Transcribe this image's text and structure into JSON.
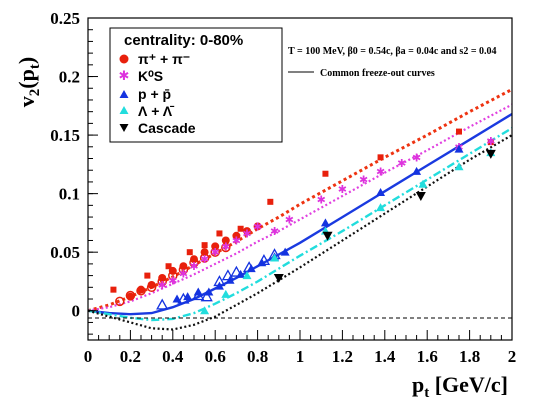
{
  "chart_data": {
    "type": "scatter",
    "xlabel": "p_t [GeV/c]",
    "ylabel": "v_2(p_t)",
    "xlim": [
      0,
      2
    ],
    "ylim": [
      -0.025,
      0.25
    ],
    "x_ticks": [
      "0",
      "0.2",
      "0.4",
      "0.6",
      "0.8",
      "1",
      "1.2",
      "1.4",
      "1.6",
      "1.8",
      "2"
    ],
    "y_ticks": [
      "0",
      "0.05",
      "0.1",
      "0.15",
      "0.2",
      "0.25"
    ],
    "y_tick_values": [
      0,
      0.05,
      0.1,
      0.15,
      0.2,
      0.25
    ],
    "legend": {
      "title": "centrality: 0-80%",
      "placement": "top-left",
      "entries": [
        "π⁺ + π⁻",
        "K⁰S",
        "p + p̄",
        "Λ + Λ̄",
        "Cascade"
      ]
    },
    "annotation": "T = 100 MeV, β0 = 0.54c, βa = 0.04c and s2 = 0.04",
    "curve_label": "Common freeze-out curves",
    "series": [
      {
        "name": "π⁺ + π⁻",
        "color": "#e8200c",
        "marker": "circle",
        "points": [
          [
            0.2,
            0.012
          ],
          [
            0.25,
            0.018
          ],
          [
            0.3,
            0.022
          ],
          [
            0.35,
            0.028
          ],
          [
            0.4,
            0.034
          ],
          [
            0.45,
            0.038
          ],
          [
            0.5,
            0.044
          ],
          [
            0.55,
            0.05
          ],
          [
            0.6,
            0.055
          ],
          [
            0.65,
            0.06
          ],
          [
            0.7,
            0.064
          ],
          [
            0.75,
            0.068
          ],
          [
            0.8,
            0.072
          ]
        ]
      },
      {
        "name": "π⁺ + π⁻ (open)",
        "color": "#e8200c",
        "marker": "circle-open",
        "points": [
          [
            0.15,
            0.008
          ],
          [
            0.2,
            0.013
          ],
          [
            0.25,
            0.017
          ],
          [
            0.3,
            0.02
          ],
          [
            0.35,
            0.025
          ],
          [
            0.4,
            0.03
          ],
          [
            0.45,
            0.035
          ],
          [
            0.5,
            0.041
          ],
          [
            0.55,
            0.045
          ],
          [
            0.6,
            0.05
          ],
          [
            0.65,
            0.054
          ]
        ]
      },
      {
        "name": "π⁺ + π⁻ (square)",
        "color": "#e8200c",
        "marker": "square",
        "points": [
          [
            0.12,
            0.018
          ],
          [
            0.28,
            0.03
          ],
          [
            0.38,
            0.038
          ],
          [
            0.48,
            0.05
          ],
          [
            0.55,
            0.056
          ],
          [
            0.62,
            0.066
          ],
          [
            0.72,
            0.07
          ],
          [
            0.86,
            0.093
          ],
          [
            1.12,
            0.117
          ],
          [
            1.38,
            0.131
          ],
          [
            1.75,
            0.153
          ],
          [
            1.9,
            0.144
          ]
        ]
      },
      {
        "name": "K⁰S",
        "color": "#dd33dd",
        "marker": "star",
        "points": [
          [
            0.35,
            0.022
          ],
          [
            0.4,
            0.026
          ],
          [
            0.45,
            0.032
          ],
          [
            0.5,
            0.038
          ],
          [
            0.55,
            0.044
          ],
          [
            0.6,
            0.05
          ],
          [
            0.65,
            0.055
          ],
          [
            0.7,
            0.06
          ],
          [
            0.75,
            0.066
          ],
          [
            0.8,
            0.072
          ],
          [
            0.88,
            0.068
          ],
          [
            0.95,
            0.078
          ],
          [
            1.1,
            0.095
          ],
          [
            1.2,
            0.104
          ],
          [
            1.3,
            0.112
          ],
          [
            1.38,
            0.119
          ],
          [
            1.48,
            0.126
          ],
          [
            1.55,
            0.131
          ],
          [
            1.75,
            0.14
          ],
          [
            1.9,
            0.145
          ]
        ]
      },
      {
        "name": "p + p̄",
        "color": "#1433e0",
        "marker": "triangle-up",
        "points": [
          [
            0.42,
            0.01
          ],
          [
            0.47,
            0.012
          ],
          [
            0.52,
            0.016
          ],
          [
            0.57,
            0.016
          ],
          [
            0.62,
            0.021
          ],
          [
            0.67,
            0.026
          ],
          [
            0.72,
            0.031
          ],
          [
            0.77,
            0.036
          ],
          [
            0.82,
            0.041
          ],
          [
            0.88,
            0.046
          ],
          [
            0.93,
            0.05
          ],
          [
            1.12,
            0.075
          ],
          [
            1.38,
            0.101
          ],
          [
            1.55,
            0.119
          ],
          [
            1.75,
            0.138
          ]
        ]
      },
      {
        "name": "p + p̄ (open)",
        "color": "#1433e0",
        "marker": "triangle-open",
        "points": [
          [
            0.35,
            0.005
          ],
          [
            0.45,
            0.01
          ],
          [
            0.52,
            0.013
          ],
          [
            0.56,
            0.012
          ],
          [
            0.62,
            0.025
          ],
          [
            0.66,
            0.03
          ],
          [
            0.7,
            0.033
          ],
          [
            0.76,
            0.037
          ],
          [
            0.83,
            0.043
          ],
          [
            0.88,
            0.048
          ]
        ]
      },
      {
        "name": "Λ + Λ̄",
        "color": "#22dddd",
        "marker": "triangle-up",
        "points": [
          [
            0.55,
            0.0
          ],
          [
            0.65,
            0.014
          ],
          [
            0.75,
            0.03
          ],
          [
            0.88,
            0.045
          ],
          [
            1.12,
            0.068
          ],
          [
            1.38,
            0.088
          ],
          [
            1.58,
            0.108
          ],
          [
            1.75,
            0.123
          ],
          [
            1.9,
            0.135
          ]
        ]
      },
      {
        "name": "Cascade",
        "color": "#000000",
        "marker": "triangle-down",
        "points": [
          [
            0.9,
            0.028
          ],
          [
            1.13,
            0.064
          ],
          [
            1.57,
            0.098
          ],
          [
            1.9,
            0.134
          ]
        ]
      }
    ],
    "curves": [
      {
        "name": "π",
        "color": "#ee3311",
        "dash": "dotted-heavy",
        "x": [
          0,
          0.1,
          0.2,
          0.3,
          0.4,
          0.5,
          0.6,
          0.7,
          0.8,
          0.9,
          1.0,
          1.2,
          1.4,
          1.6,
          1.8,
          2.0
        ],
        "y": [
          0,
          0.005,
          0.012,
          0.02,
          0.029,
          0.039,
          0.049,
          0.059,
          0.07,
          0.08,
          0.091,
          0.111,
          0.131,
          0.15,
          0.17,
          0.189
        ]
      },
      {
        "name": "K",
        "color": "#e040e0",
        "dash": "dotted",
        "x": [
          0,
          0.1,
          0.2,
          0.3,
          0.4,
          0.5,
          0.6,
          0.7,
          0.8,
          0.9,
          1.0,
          1.2,
          1.4,
          1.6,
          1.8,
          2.0
        ],
        "y": [
          0,
          0.003,
          0.008,
          0.015,
          0.023,
          0.031,
          0.04,
          0.049,
          0.059,
          0.068,
          0.078,
          0.098,
          0.118,
          0.137,
          0.157,
          0.176
        ]
      },
      {
        "name": "p",
        "color": "#1a3ae0",
        "dash": "solid",
        "x": [
          0,
          0.1,
          0.2,
          0.3,
          0.4,
          0.5,
          0.6,
          0.7,
          0.8,
          0.9,
          1.0,
          1.2,
          1.4,
          1.6,
          1.8,
          2.0
        ],
        "y": [
          0,
          -0.002,
          -0.003,
          -0.002,
          0.003,
          0.01,
          0.019,
          0.028,
          0.038,
          0.048,
          0.058,
          0.08,
          0.102,
          0.124,
          0.146,
          0.168
        ]
      },
      {
        "name": "Λ",
        "color": "#22dddd",
        "dash": "dashdot",
        "x": [
          0,
          0.1,
          0.2,
          0.3,
          0.4,
          0.5,
          0.6,
          0.7,
          0.8,
          0.9,
          1.0,
          1.2,
          1.4,
          1.6,
          1.8,
          2.0
        ],
        "y": [
          0,
          -0.003,
          -0.006,
          -0.008,
          -0.007,
          -0.002,
          0.006,
          0.015,
          0.025,
          0.036,
          0.047,
          0.068,
          0.09,
          0.112,
          0.134,
          0.156
        ]
      },
      {
        "name": "Ξ",
        "color": "#111111",
        "dash": "dotted",
        "x": [
          0,
          0.1,
          0.2,
          0.3,
          0.4,
          0.5,
          0.6,
          0.7,
          0.8,
          0.9,
          1.0,
          1.2,
          1.4,
          1.6,
          1.8,
          2.0
        ],
        "y": [
          0,
          -0.005,
          -0.01,
          -0.015,
          -0.016,
          -0.012,
          -0.005,
          0.005,
          0.015,
          0.026,
          0.037,
          0.06,
          0.083,
          0.106,
          0.129,
          0.15
        ]
      }
    ]
  }
}
